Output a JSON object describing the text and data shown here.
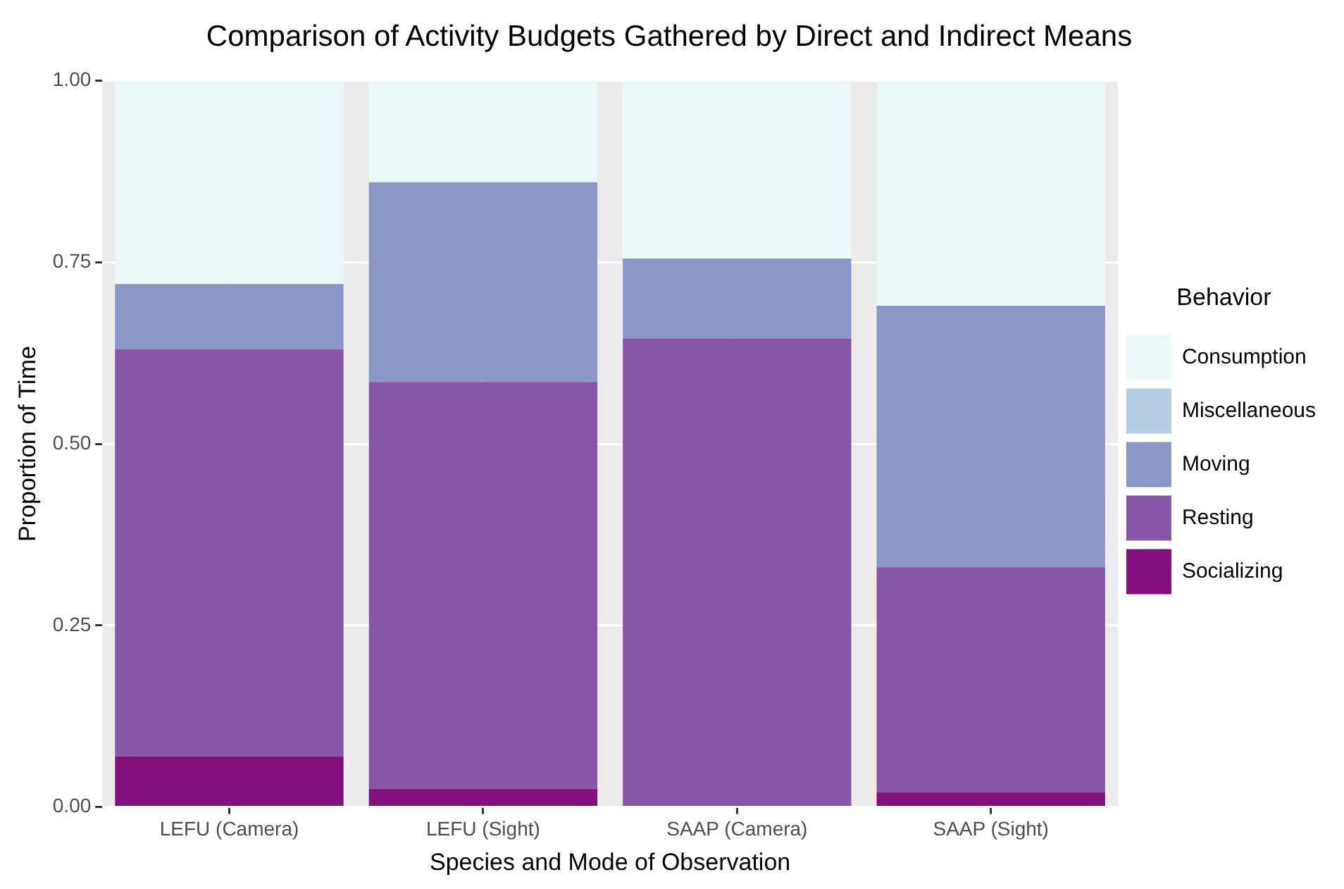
{
  "chart_data": {
    "type": "bar",
    "stacked": true,
    "title": "Comparison of Activity Budgets Gathered by Direct and Indirect Means",
    "xlabel": "Species and Mode of Observation",
    "ylabel": "Proportion of Time",
    "legend_title": "Behavior",
    "legend": "right",
    "grid": true,
    "categories": [
      "LEFU (Camera)",
      "LEFU (Sight)",
      "SAAP (Camera)",
      "SAAP (Sight)"
    ],
    "ylim": [
      0,
      1
    ],
    "yticks": [
      {
        "value": 0,
        "label": "0.00"
      },
      {
        "value": 0.25,
        "label": "0.25"
      },
      {
        "value": 0.5,
        "label": "0.50"
      },
      {
        "value": 0.75,
        "label": "0.75"
      },
      {
        "value": 1,
        "label": "1.00"
      }
    ],
    "series": [
      {
        "name": "Socializing",
        "color": "#810f7c",
        "values": [
          0.07,
          0.025,
          0,
          0.02
        ]
      },
      {
        "name": "Resting",
        "color": "#8856a7",
        "values": [
          0.56,
          0.56,
          0.645,
          0.31
        ]
      },
      {
        "name": "Moving",
        "color": "#8c96c6",
        "values": [
          0.09,
          0.275,
          0.11,
          0.36
        ]
      },
      {
        "name": "Miscellaneous",
        "color": "#b3cde3",
        "values": [
          0,
          0,
          0,
          0
        ]
      },
      {
        "name": "Consumption",
        "color": "#ebf7f9",
        "values": [
          0.28,
          0.14,
          0.245,
          0.31
        ]
      }
    ]
  }
}
